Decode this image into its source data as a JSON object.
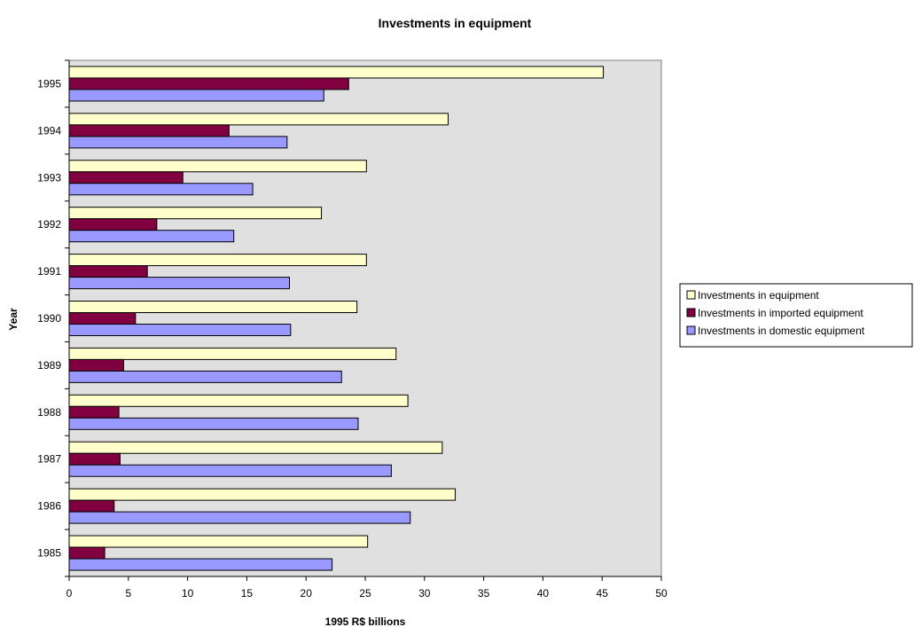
{
  "chart_data": {
    "type": "bar",
    "orientation": "horizontal",
    "title": "Investments in equipment",
    "xlabel": "1995 R$ billions",
    "ylabel": "Year",
    "xlim": [
      0,
      50
    ],
    "x_ticks": [
      0,
      5,
      10,
      15,
      20,
      25,
      30,
      35,
      40,
      45,
      50
    ],
    "categories": [
      "1985",
      "1986",
      "1987",
      "1988",
      "1989",
      "1990",
      "1991",
      "1992",
      "1993",
      "1994",
      "1995"
    ],
    "series": [
      {
        "name": "Investments in equipment",
        "color": "#ffffcc",
        "values": [
          25.2,
          32.6,
          31.5,
          28.6,
          27.6,
          24.3,
          25.1,
          21.3,
          25.1,
          32.0,
          45.1
        ]
      },
      {
        "name": "Investments in imported equipment",
        "color": "#800040",
        "values": [
          3.0,
          3.8,
          4.3,
          4.2,
          4.6,
          5.6,
          6.6,
          7.4,
          9.6,
          13.5,
          23.6
        ]
      },
      {
        "name": "Investments in domestic equipment",
        "color": "#9999ff",
        "values": [
          22.2,
          28.8,
          27.2,
          24.4,
          23.0,
          18.7,
          18.6,
          13.9,
          15.5,
          18.4,
          21.5
        ]
      }
    ],
    "grid": false,
    "plot_background": "#e0e0e0",
    "legend_position": "right"
  }
}
